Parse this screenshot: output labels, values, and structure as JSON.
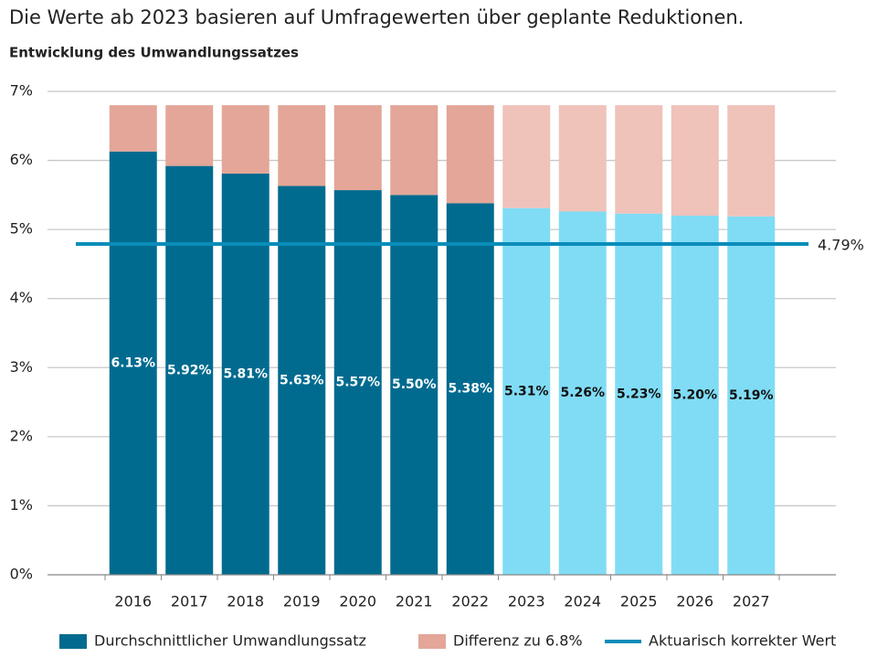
{
  "chart_data": {
    "type": "stacked_bar",
    "title": "Die Werte ab 2023 basieren auf Umfragewerten über geplante Reduktionen.",
    "subtitle": "Entwicklung des Umwandlungssatzes",
    "categories": [
      "2016",
      "2017",
      "2018",
      "2019",
      "2020",
      "2021",
      "2022",
      "2023",
      "2024",
      "2025",
      "2026",
      "2027"
    ],
    "series": [
      {
        "name": "Durchschnittlicher Umwandlungssatz",
        "color": "#006b8f",
        "colors": [
          "#006b8f",
          "#006b8f",
          "#006b8f",
          "#006b8f",
          "#006b8f",
          "#006b8f",
          "#006b8f",
          "#80dcf5",
          "#80dcf5",
          "#80dcf5",
          "#80dcf5",
          "#80dcf5"
        ],
        "values": [
          6.13,
          5.92,
          5.81,
          5.63,
          5.57,
          5.5,
          5.38,
          5.31,
          5.26,
          5.23,
          5.2,
          5.19
        ],
        "value_labels": [
          "6.13%",
          "5.92%",
          "5.81%",
          "5.63%",
          "5.57%",
          "5.50%",
          "5.38%",
          "5.31%",
          "5.26%",
          "5.23%",
          "5.20%",
          "5.19%"
        ]
      },
      {
        "name": "Differenz zu 6.8%",
        "color": "#e3a698",
        "colors": [
          "#e3a698",
          "#e3a698",
          "#e3a698",
          "#e3a698",
          "#e3a698",
          "#e3a698",
          "#e3a698",
          "#efc2ba",
          "#efc2ba",
          "#efc2ba",
          "#efc2ba",
          "#efc2ba"
        ],
        "values": [
          0.67,
          0.88,
          0.99,
          1.17,
          1.23,
          1.3,
          1.42,
          1.49,
          1.54,
          1.57,
          1.6,
          1.61
        ]
      }
    ],
    "reference_line": {
      "name": "Aktuarisch korrekter Wert",
      "value": 4.79,
      "value_label": "4.79%",
      "color": "#0a8dba"
    },
    "ylim": [
      0,
      7
    ],
    "yticks": [
      {
        "value": 0,
        "label": "0%"
      },
      {
        "value": 1,
        "label": "1%"
      },
      {
        "value": 2,
        "label": "2%"
      },
      {
        "value": 3,
        "label": "3%"
      },
      {
        "value": 4,
        "label": "4%"
      },
      {
        "value": 5,
        "label": "5%"
      },
      {
        "value": 6,
        "label": "6%"
      },
      {
        "value": 7,
        "label": "7%"
      }
    ],
    "grid": true
  }
}
